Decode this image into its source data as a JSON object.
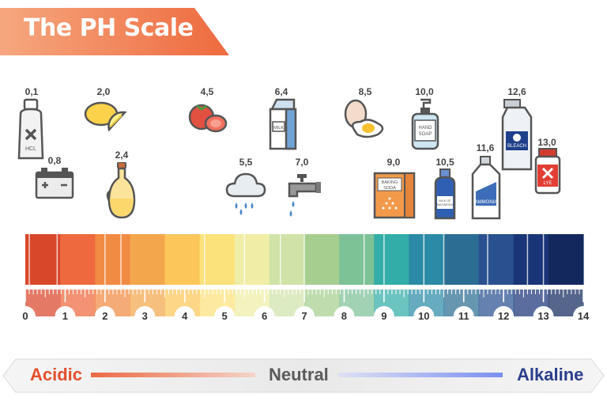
{
  "title": "The PH Scale",
  "values": [
    "0,1",
    "2,0",
    "4,5",
    "6,4",
    "8,5",
    "10,0",
    "12,6",
    "0,8",
    "2,4",
    "5,5",
    "7,0",
    "9,0",
    "10,5",
    "11,6",
    "13,0"
  ],
  "item_labels": {
    "hcl": "HCL",
    "milk": "MILK",
    "hand_soap_1": "HAND",
    "hand_soap_2": "SOAP",
    "bleach": "BLEACH",
    "baking_soda_1": "BAKING",
    "baking_soda_2": "SODA",
    "magnesia_1": "MILK OF",
    "magnesia_2": "MAGNESIA",
    "ammonia": "AMMONIA",
    "lye": "LYE"
  },
  "scale": {
    "ticks": [
      "0",
      "1",
      "2",
      "3",
      "4",
      "5",
      "6",
      "7",
      "8",
      "9",
      "10",
      "11",
      "12",
      "13",
      "14"
    ],
    "colors": [
      "#d9472b",
      "#ee6a3e",
      "#f18a43",
      "#f4a64c",
      "#fcc65a",
      "#fce27b",
      "#f0eda6",
      "#cfe3a9",
      "#a6cf8f",
      "#7dc197",
      "#33ada8",
      "#2b8aa6",
      "#2c6d93",
      "#2a5090",
      "#1a3578",
      "#13295e"
    ]
  },
  "bottom": {
    "acidic": "Acidic",
    "neutral": "Neutral",
    "alkaline": "Alkaline",
    "acidic_color": "#e2502c",
    "neutral_color": "#5a5a5a",
    "alkaline_color": "#2b3f8c"
  }
}
